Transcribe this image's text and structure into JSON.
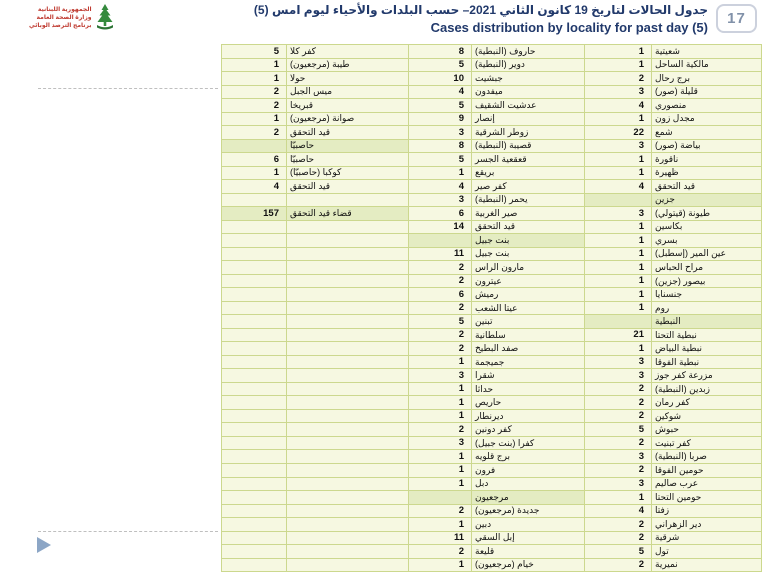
{
  "page": {
    "slide_number": "17",
    "title_ar": "جدول الحالات لتاريخ 19 كانون الثاني 2021– حسب البلدات والأحياء ليوم امس (5)",
    "title_en": "Cases distribution by locality for past day (5)",
    "logo": {
      "icon": "cedar-tree-icon",
      "lines": [
        "الجمهورية اللبنانية",
        "وزارة الصحة العامة",
        "برنامج الترصد الوبائي"
      ]
    }
  },
  "colors": {
    "title_navy": "#21396b",
    "row_bg": "#f6f8e1",
    "row_shaded_bg": "#e4ecc2",
    "table_border": "#ccd88e",
    "badge_text": "#8191a9",
    "logo_red": "#bf3a30",
    "cedar_green": "#348a3d",
    "triangle_blue": "#8ca6c6"
  },
  "table": {
    "row_format": [
      "locality_name",
      "cases_value",
      "is_shaded_header"
    ],
    "groups": [
      {
        "id": "group-left",
        "trailing_empty_rows": 26,
        "rows": [
          [
            "كفر كلا",
            "5",
            0
          ],
          [
            "طيبة (مرجعيون)",
            "1",
            0
          ],
          [
            "حولا",
            "1",
            0
          ],
          [
            "ميس الجبل",
            "2",
            0
          ],
          [
            "قبريخا",
            "2",
            0
          ],
          [
            "صوانة (مرجعيون)",
            "1",
            0
          ],
          [
            "قيد التحقق",
            "2",
            0
          ],
          [
            "حاصبيّا",
            "",
            1
          ],
          [
            "حاصبيّا",
            "6",
            0
          ],
          [
            "كوكبا (حاصبيّا)",
            "1",
            0
          ],
          [
            "قيد التحقق",
            "4",
            0
          ],
          [
            "",
            "",
            0
          ],
          [
            "قضاء قيد التحقق",
            "157",
            1
          ]
        ]
      },
      {
        "id": "group-middle",
        "trailing_empty_rows": 0,
        "rows": [
          [
            "حاروف (النبطية)",
            "8",
            0
          ],
          [
            "دوير (النبطية)",
            "5",
            0
          ],
          [
            "جبشيت",
            "10",
            0
          ],
          [
            "ميفدون",
            "4",
            0
          ],
          [
            "عدشيت الشقيف",
            "5",
            0
          ],
          [
            "إنصار",
            "9",
            0
          ],
          [
            "زوطر الشرقية",
            "3",
            0
          ],
          [
            "قصيبة (النبطية)",
            "8",
            0
          ],
          [
            "قعقعية الجسر",
            "5",
            0
          ],
          [
            "بريقع",
            "1",
            0
          ],
          [
            "كفر صير",
            "4",
            0
          ],
          [
            "يحمر (النبطية)",
            "3",
            0
          ],
          [
            "صير الغربية",
            "6",
            0
          ],
          [
            "قيد التحقق",
            "14",
            0
          ],
          [
            "بنت جبيل",
            "",
            1
          ],
          [
            "بنت جبيل",
            "11",
            0
          ],
          [
            "مارون الراس",
            "2",
            0
          ],
          [
            "عيترون",
            "2",
            0
          ],
          [
            "رميش",
            "6",
            0
          ],
          [
            "عيتا الشعب",
            "2",
            0
          ],
          [
            "تبنين",
            "5",
            0
          ],
          [
            "سلطانية",
            "2",
            0
          ],
          [
            "صفد البطيخ",
            "2",
            0
          ],
          [
            "جميجمة",
            "1",
            0
          ],
          [
            "شقرا",
            "3",
            0
          ],
          [
            "حداثا",
            "1",
            0
          ],
          [
            "حاريص",
            "1",
            0
          ],
          [
            "ديرنطار",
            "1",
            0
          ],
          [
            "كفر دونين",
            "2",
            0
          ],
          [
            "كفرا (بنت جبيل)",
            "3",
            0
          ],
          [
            "برج قلويه",
            "1",
            0
          ],
          [
            "فرون",
            "1",
            0
          ],
          [
            "دبل",
            "1",
            0
          ],
          [
            "مرجعيون",
            "",
            1
          ],
          [
            "جديدة (مرجعيون)",
            "2",
            0
          ],
          [
            "دبين",
            "1",
            0
          ],
          [
            "إبل السقي",
            "11",
            0
          ],
          [
            "قليعة",
            "2",
            0
          ],
          [
            "خيام (مرجعيون)",
            "1",
            0
          ]
        ]
      },
      {
        "id": "group-right",
        "trailing_empty_rows": 0,
        "rows": [
          [
            "شعيتية",
            "1",
            0
          ],
          [
            "مالكية الساحل",
            "1",
            0
          ],
          [
            "برج رحال",
            "2",
            0
          ],
          [
            "قليلة (صور)",
            "3",
            0
          ],
          [
            "منصوري",
            "4",
            0
          ],
          [
            "مجدل زون",
            "1",
            0
          ],
          [
            "شمع",
            "22",
            0
          ],
          [
            "بياضة (صور)",
            "3",
            0
          ],
          [
            "ناقورة",
            "1",
            0
          ],
          [
            "ظهيرة",
            "1",
            0
          ],
          [
            "قيد التحقق",
            "4",
            0
          ],
          [
            "جزين",
            "",
            1
          ],
          [
            "طيونة (قيتولي)",
            "3",
            0
          ],
          [
            "بكاسين",
            "1",
            0
          ],
          [
            "بسري",
            "1",
            0
          ],
          [
            "عين المير (إسطبل)",
            "1",
            0
          ],
          [
            "مراح الحباس",
            "1",
            0
          ],
          [
            "بيصور (جزين)",
            "1",
            0
          ],
          [
            "جنسنايا",
            "1",
            0
          ],
          [
            "روم",
            "1",
            0
          ],
          [
            "النبطية",
            "",
            1
          ],
          [
            "نبطية التحتا",
            "21",
            0
          ],
          [
            "نبطية البياض",
            "1",
            0
          ],
          [
            "نبطية الفوقا",
            "3",
            0
          ],
          [
            "مزرعة كفر جوز",
            "3",
            0
          ],
          [
            "زبدين (النبطية)",
            "2",
            0
          ],
          [
            "كفر رمان",
            "2",
            0
          ],
          [
            "شوكين",
            "2",
            0
          ],
          [
            "حبوش",
            "5",
            0
          ],
          [
            "كفر تبنيت",
            "2",
            0
          ],
          [
            "صربا (النبطية)",
            "3",
            0
          ],
          [
            "حومين الفوقا",
            "2",
            0
          ],
          [
            "عرب صاليم",
            "3",
            0
          ],
          [
            "حومين التحتا",
            "1",
            0
          ],
          [
            "زفتا",
            "4",
            0
          ],
          [
            "دير الزهراني",
            "2",
            0
          ],
          [
            "شرقية",
            "2",
            0
          ],
          [
            "تول",
            "5",
            0
          ],
          [
            "نميرية",
            "2",
            0
          ]
        ]
      }
    ]
  }
}
